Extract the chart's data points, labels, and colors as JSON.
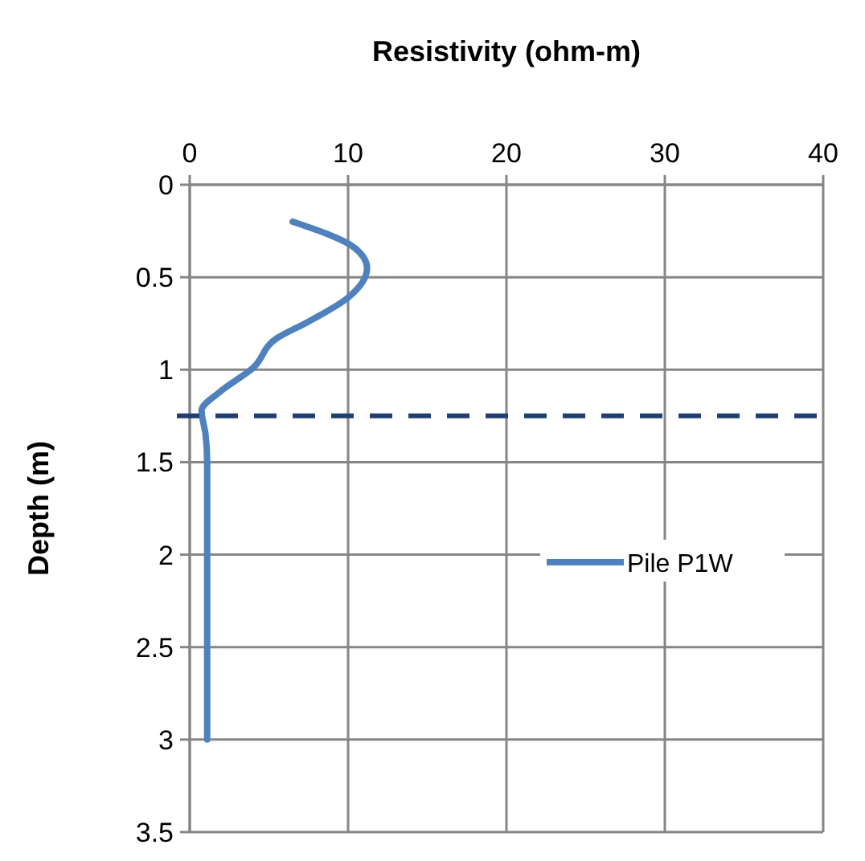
{
  "chart_data": {
    "type": "line",
    "xlabel": "Resistivity (ohm-m)",
    "ylabel": "Depth (m)",
    "xlim": [
      0,
      40
    ],
    "xticks": [
      0,
      10,
      20,
      30,
      40
    ],
    "ylim": [
      3.5,
      0
    ],
    "yticks": [
      0,
      0.5,
      1,
      1.5,
      2,
      2.5,
      3,
      3.5
    ],
    "series": [
      {
        "name": "Pile P1W",
        "color": "#4f81bd",
        "x": [
          6.5,
          10.4,
          11.2,
          10.0,
          7.5,
          5.5,
          4.0,
          1.9,
          0.75,
          1.0,
          1.1,
          1.1
        ],
        "values": [
          0.2,
          0.34,
          0.45,
          0.61,
          0.74,
          0.83,
          0.99,
          1.12,
          1.22,
          1.35,
          1.5,
          3.0
        ]
      }
    ],
    "ref_lines": [
      {
        "axis": "y",
        "value": 1.25,
        "color": "#1f3f6e",
        "line_style": "dashed"
      }
    ],
    "grid": true,
    "legend": "right",
    "marker": "none",
    "line_style": "solid"
  }
}
